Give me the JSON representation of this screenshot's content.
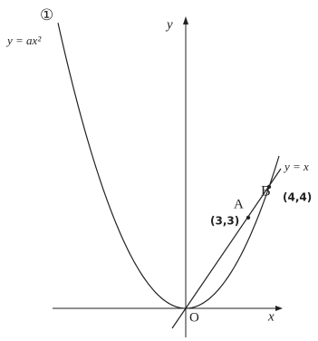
{
  "curve_label": {
    "number": "①",
    "equation": "y = ax²"
  },
  "axes": {
    "x": "x",
    "y": "y",
    "origin": "O"
  },
  "line_label": "y = x",
  "points": [
    {
      "name": "A",
      "coords": "(3,3)"
    },
    {
      "name": "B",
      "coords": "(4,4)"
    }
  ]
}
